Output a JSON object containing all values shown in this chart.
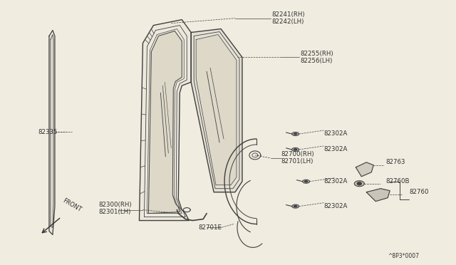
{
  "background_color": "#f0ece0",
  "line_color": "#404040",
  "text_color": "#303030",
  "bg_white": "#ffffff",
  "labels": {
    "82241": "82241(RH)",
    "82242": "82242(LH)",
    "82255": "82255(RH)",
    "82256": "82256(LH)",
    "82335": "82335",
    "82300": "82300(RH)",
    "82301": "82301(LH)",
    "82700": "82700(RH)",
    "82701": "82701(LH)",
    "82701E": "82701E",
    "82302A": "82302A",
    "82763": "82763",
    "82760B": "82760B",
    "82760": "82760",
    "front": "FRONT",
    "ref": "^8P3*0007"
  }
}
